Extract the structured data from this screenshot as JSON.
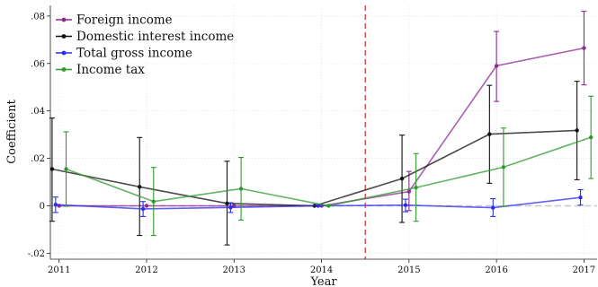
{
  "chart_data": {
    "type": "line",
    "title": "",
    "xlabel": "Year",
    "ylabel": "Coefficient",
    "x": [
      2011,
      2012,
      2013,
      2014,
      2015,
      2016,
      2017
    ],
    "xlim": [
      2010.9,
      2017.15
    ],
    "ylim": [
      -0.0225,
      0.0845
    ],
    "x_ticks": [
      "2011",
      "2012",
      "2013",
      "2014",
      "2015",
      "2016",
      "2017"
    ],
    "y_ticks": [
      {
        "value": -0.02,
        "label": "-.02"
      },
      {
        "value": 0,
        "label": "0"
      },
      {
        "value": 0.02,
        "label": ".02"
      },
      {
        "value": 0.04,
        "label": ".04"
      },
      {
        "value": 0.06,
        "label": ".06"
      },
      {
        "value": 0.08,
        "label": ".08"
      }
    ],
    "grid": true,
    "legend_position": "top-left",
    "event_line": {
      "x": 2014.5,
      "color": "#d62728",
      "style": "dashed"
    },
    "zero_line": {
      "y": 0,
      "color": "#c8c8c8",
      "style": "dashed"
    },
    "series": [
      {
        "name": "Foreign income",
        "color": "#8e2c8e",
        "offset": 0,
        "values": [
          0,
          0,
          0,
          0,
          0.006,
          0.059,
          0.0665
        ],
        "ci_low": [
          null,
          null,
          null,
          null,
          -0.002,
          0.044,
          0.051
        ],
        "ci_high": [
          null,
          null,
          null,
          null,
          0.0145,
          0.0735,
          0.082
        ]
      },
      {
        "name": "Domestic interest income",
        "color": "#111111",
        "offset": -0.08,
        "values": [
          0.0155,
          0.008,
          0.001,
          0,
          0.0115,
          0.0302,
          0.0318
        ],
        "ci_low": [
          -0.0065,
          -0.0125,
          -0.0165,
          null,
          -0.007,
          0.0095,
          0.011
        ],
        "ci_high": [
          0.037,
          0.0288,
          0.0188,
          null,
          0.0298,
          0.0508,
          0.0525
        ]
      },
      {
        "name": "Total gross income",
        "color": "#2c2cf0",
        "offset": -0.04,
        "values": [
          0.0005,
          -0.0013,
          -0.0007,
          0,
          0.0003,
          -0.0008,
          0.0035
        ],
        "ci_low": [
          -0.0028,
          -0.0045,
          -0.0028,
          null,
          -0.0025,
          -0.0045,
          0.0003
        ],
        "ci_high": [
          0.0037,
          0.0018,
          0.0013,
          null,
          0.0028,
          0.003,
          0.0068
        ]
      },
      {
        "name": "Income tax",
        "color": "#2e9a2e",
        "offset": 0.08,
        "values": [
          0.0155,
          0.0018,
          0.0072,
          0,
          0.0077,
          0.0163,
          0.0289
        ],
        "ci_low": [
          -0.0002,
          -0.0125,
          -0.006,
          null,
          -0.0065,
          -0.0002,
          0.0115
        ],
        "ci_high": [
          0.0312,
          0.0162,
          0.0204,
          null,
          0.022,
          0.0328,
          0.0462
        ]
      }
    ]
  }
}
